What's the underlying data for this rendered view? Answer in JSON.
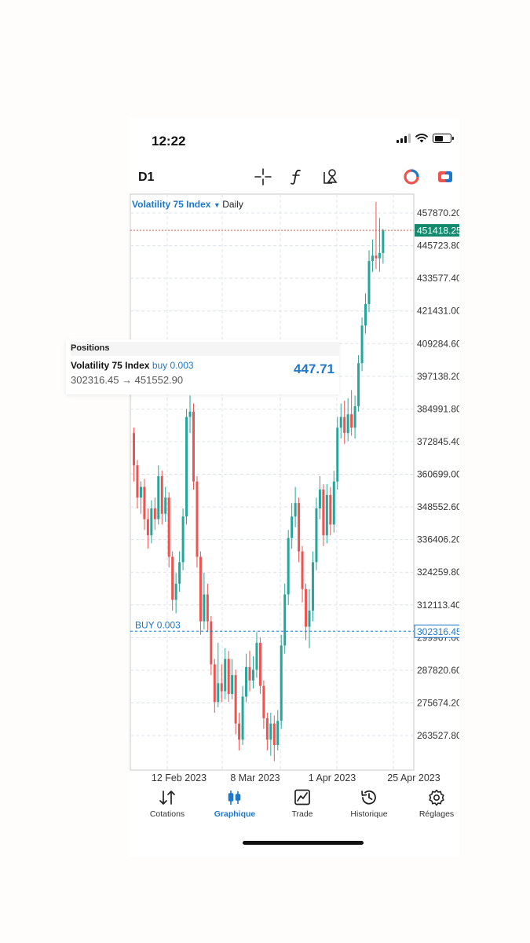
{
  "status_bar": {
    "time": "12:22"
  },
  "toolbar": {
    "timeframe": "D1",
    "icons": [
      "crosshair-icon",
      "function-icon",
      "objects-icon",
      "trade-toggle-icon",
      "chat-icon"
    ]
  },
  "chart_header": {
    "symbol": "Volatility 75 Index",
    "period": "Daily"
  },
  "price_axis": {
    "labels": [
      "457870.20",
      "445723.80",
      "433577.40",
      "421431.00",
      "409284.60",
      "397138.20",
      "384991.80",
      "372845.40",
      "360699.00",
      "348552.60",
      "336406.20",
      "324259.80",
      "312113.40",
      "299967.00",
      "287820.60",
      "275674.20",
      "263527.80"
    ],
    "current_price": "451418.25",
    "position_price": "302316.45"
  },
  "time_axis": {
    "labels": [
      "12 Feb 2023",
      "8 Mar 2023",
      "1 Apr 2023",
      "25 Apr 2023"
    ]
  },
  "buy_line": {
    "label": "BUY 0.003"
  },
  "positions_panel": {
    "title": "Positions",
    "symbol": "Volatility 75 Index",
    "side": "buy 0.003",
    "price_range": "302316.45 → 451552.90",
    "profit": "447.71"
  },
  "tabs": [
    {
      "label": "Cotations",
      "icon": "quotes-icon",
      "active": false
    },
    {
      "label": "Graphique",
      "icon": "chart-icon",
      "active": true
    },
    {
      "label": "Trade",
      "icon": "trade-icon",
      "active": false
    },
    {
      "label": "Historique",
      "icon": "history-icon",
      "active": false
    },
    {
      "label": "Réglages",
      "icon": "settings-icon",
      "active": false
    }
  ],
  "colors": {
    "bull": "#26a69a",
    "bear": "#ef5350",
    "accent": "#1f77c9",
    "price_tag": "#138a6e"
  },
  "chart_data": {
    "type": "candlestick",
    "y_axis_ticks": [
      457870.2,
      445723.8,
      433577.4,
      421431.0,
      409284.6,
      397138.2,
      384991.8,
      372845.4,
      360699.0,
      348552.6,
      336406.2,
      324259.8,
      312113.4,
      299967.0,
      287820.6,
      275674.2,
      263527.8
    ],
    "current_price": 451418.25,
    "buy_price": 302316.45,
    "candles": [
      {
        "o": 376000,
        "c": 364000,
        "h": 378000,
        "l": 358000
      },
      {
        "o": 364000,
        "c": 352000,
        "h": 366000,
        "l": 348000
      },
      {
        "o": 352000,
        "c": 356000,
        "h": 358000,
        "l": 346000
      },
      {
        "o": 356000,
        "c": 344000,
        "h": 359000,
        "l": 340000
      },
      {
        "o": 344000,
        "c": 338000,
        "h": 348000,
        "l": 333000
      },
      {
        "o": 338000,
        "c": 348000,
        "h": 351000,
        "l": 335000
      },
      {
        "o": 348000,
        "c": 344000,
        "h": 352000,
        "l": 340000
      },
      {
        "o": 344000,
        "c": 360000,
        "h": 364000,
        "l": 342000
      },
      {
        "o": 360000,
        "c": 346000,
        "h": 362000,
        "l": 342000
      },
      {
        "o": 346000,
        "c": 352000,
        "h": 356000,
        "l": 343000
      },
      {
        "o": 352000,
        "c": 330000,
        "h": 354000,
        "l": 326000
      },
      {
        "o": 330000,
        "c": 314000,
        "h": 332000,
        "l": 310000
      },
      {
        "o": 314000,
        "c": 320000,
        "h": 324000,
        "l": 309000
      },
      {
        "o": 320000,
        "c": 328000,
        "h": 332000,
        "l": 317000
      },
      {
        "o": 328000,
        "c": 345000,
        "h": 348000,
        "l": 325000
      },
      {
        "o": 345000,
        "c": 382000,
        "h": 385000,
        "l": 342000
      },
      {
        "o": 382000,
        "c": 384000,
        "h": 390000,
        "l": 376000
      },
      {
        "o": 384000,
        "c": 358000,
        "h": 387000,
        "l": 355000
      },
      {
        "o": 358000,
        "c": 330000,
        "h": 360000,
        "l": 326000
      },
      {
        "o": 330000,
        "c": 306000,
        "h": 332000,
        "l": 301000
      },
      {
        "o": 306000,
        "c": 316000,
        "h": 324000,
        "l": 303000
      },
      {
        "o": 316000,
        "c": 306000,
        "h": 320000,
        "l": 302000
      },
      {
        "o": 306000,
        "c": 290000,
        "h": 308000,
        "l": 286000
      },
      {
        "o": 290000,
        "c": 276000,
        "h": 292000,
        "l": 272000
      },
      {
        "o": 276000,
        "c": 283000,
        "h": 298000,
        "l": 274000
      },
      {
        "o": 283000,
        "c": 280000,
        "h": 290000,
        "l": 276000
      },
      {
        "o": 280000,
        "c": 292000,
        "h": 296000,
        "l": 277000
      },
      {
        "o": 292000,
        "c": 279000,
        "h": 295000,
        "l": 276000
      },
      {
        "o": 279000,
        "c": 286000,
        "h": 292000,
        "l": 277000
      },
      {
        "o": 286000,
        "c": 268000,
        "h": 288000,
        "l": 264000
      },
      {
        "o": 268000,
        "c": 262000,
        "h": 272000,
        "l": 258000
      },
      {
        "o": 262000,
        "c": 278000,
        "h": 282000,
        "l": 260000
      },
      {
        "o": 278000,
        "c": 289000,
        "h": 294000,
        "l": 276000
      },
      {
        "o": 289000,
        "c": 284000,
        "h": 295000,
        "l": 280000
      },
      {
        "o": 284000,
        "c": 288000,
        "h": 293000,
        "l": 281000
      },
      {
        "o": 288000,
        "c": 298000,
        "h": 302000,
        "l": 285000
      },
      {
        "o": 298000,
        "c": 282000,
        "h": 300000,
        "l": 279000
      },
      {
        "o": 282000,
        "c": 270000,
        "h": 284000,
        "l": 266000
      },
      {
        "o": 270000,
        "c": 262000,
        "h": 272000,
        "l": 258000
      },
      {
        "o": 262000,
        "c": 268000,
        "h": 272000,
        "l": 256000
      },
      {
        "o": 268000,
        "c": 260000,
        "h": 271000,
        "l": 254000
      },
      {
        "o": 260000,
        "c": 269000,
        "h": 273000,
        "l": 258000
      },
      {
        "o": 269000,
        "c": 297000,
        "h": 301000,
        "l": 266000
      },
      {
        "o": 297000,
        "c": 316000,
        "h": 320000,
        "l": 294000
      },
      {
        "o": 316000,
        "c": 337000,
        "h": 340000,
        "l": 312000
      },
      {
        "o": 337000,
        "c": 345000,
        "h": 350000,
        "l": 333000
      },
      {
        "o": 345000,
        "c": 350000,
        "h": 356000,
        "l": 341000
      },
      {
        "o": 350000,
        "c": 332000,
        "h": 352000,
        "l": 328000
      },
      {
        "o": 332000,
        "c": 318000,
        "h": 334000,
        "l": 313000
      },
      {
        "o": 318000,
        "c": 304000,
        "h": 320000,
        "l": 299000
      },
      {
        "o": 304000,
        "c": 310000,
        "h": 318000,
        "l": 296000
      },
      {
        "o": 310000,
        "c": 328000,
        "h": 332000,
        "l": 306000
      },
      {
        "o": 328000,
        "c": 348000,
        "h": 352000,
        "l": 325000
      },
      {
        "o": 348000,
        "c": 355000,
        "h": 360000,
        "l": 344000
      },
      {
        "o": 355000,
        "c": 338000,
        "h": 357000,
        "l": 334000
      },
      {
        "o": 338000,
        "c": 353000,
        "h": 357000,
        "l": 335000
      },
      {
        "o": 353000,
        "c": 342000,
        "h": 356000,
        "l": 338000
      },
      {
        "o": 342000,
        "c": 358000,
        "h": 362000,
        "l": 339000
      },
      {
        "o": 358000,
        "c": 378000,
        "h": 382000,
        "l": 355000
      },
      {
        "o": 378000,
        "c": 382000,
        "h": 387000,
        "l": 374000
      },
      {
        "o": 382000,
        "c": 376000,
        "h": 388000,
        "l": 372000
      },
      {
        "o": 376000,
        "c": 383000,
        "h": 389000,
        "l": 373000
      },
      {
        "o": 383000,
        "c": 378000,
        "h": 392000,
        "l": 375000
      },
      {
        "o": 378000,
        "c": 386000,
        "h": 390000,
        "l": 374000
      },
      {
        "o": 386000,
        "c": 402000,
        "h": 405000,
        "l": 384000
      },
      {
        "o": 402000,
        "c": 416000,
        "h": 419000,
        "l": 399000
      },
      {
        "o": 416000,
        "c": 424000,
        "h": 428000,
        "l": 413000
      },
      {
        "o": 424000,
        "c": 440000,
        "h": 444000,
        "l": 421000
      },
      {
        "o": 440000,
        "c": 442000,
        "h": 448000,
        "l": 436000
      },
      {
        "o": 442000,
        "c": 441000,
        "h": 462000,
        "l": 437000
      },
      {
        "o": 441000,
        "c": 443000,
        "h": 456000,
        "l": 436000
      },
      {
        "o": 443000,
        "c": 451418,
        "h": 452000,
        "l": 439000
      }
    ]
  }
}
